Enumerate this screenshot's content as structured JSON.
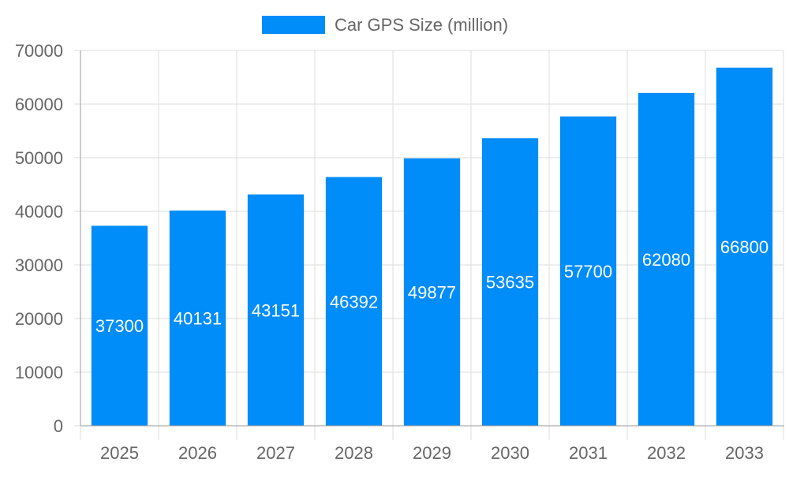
{
  "chart_data": {
    "type": "bar",
    "categories": [
      "2025",
      "2026",
      "2027",
      "2028",
      "2029",
      "2030",
      "2031",
      "2032",
      "2033"
    ],
    "series": [
      {
        "name": "Car GPS Size (million)",
        "values": [
          37300,
          40131,
          43151,
          46392,
          49877,
          53635,
          57700,
          62080,
          66800
        ]
      }
    ],
    "ylim": [
      0,
      70000
    ],
    "yticks": [
      "0",
      "10000",
      "20000",
      "30000",
      "40000",
      "50000",
      "60000",
      "70000"
    ],
    "grid": true,
    "legend": "top",
    "data_labels": "inside-center",
    "colors": {
      "bar": "#008cf9",
      "grid": "#dddddd",
      "axis": "#999999",
      "text": "#666666",
      "label": "#ffffff"
    }
  }
}
